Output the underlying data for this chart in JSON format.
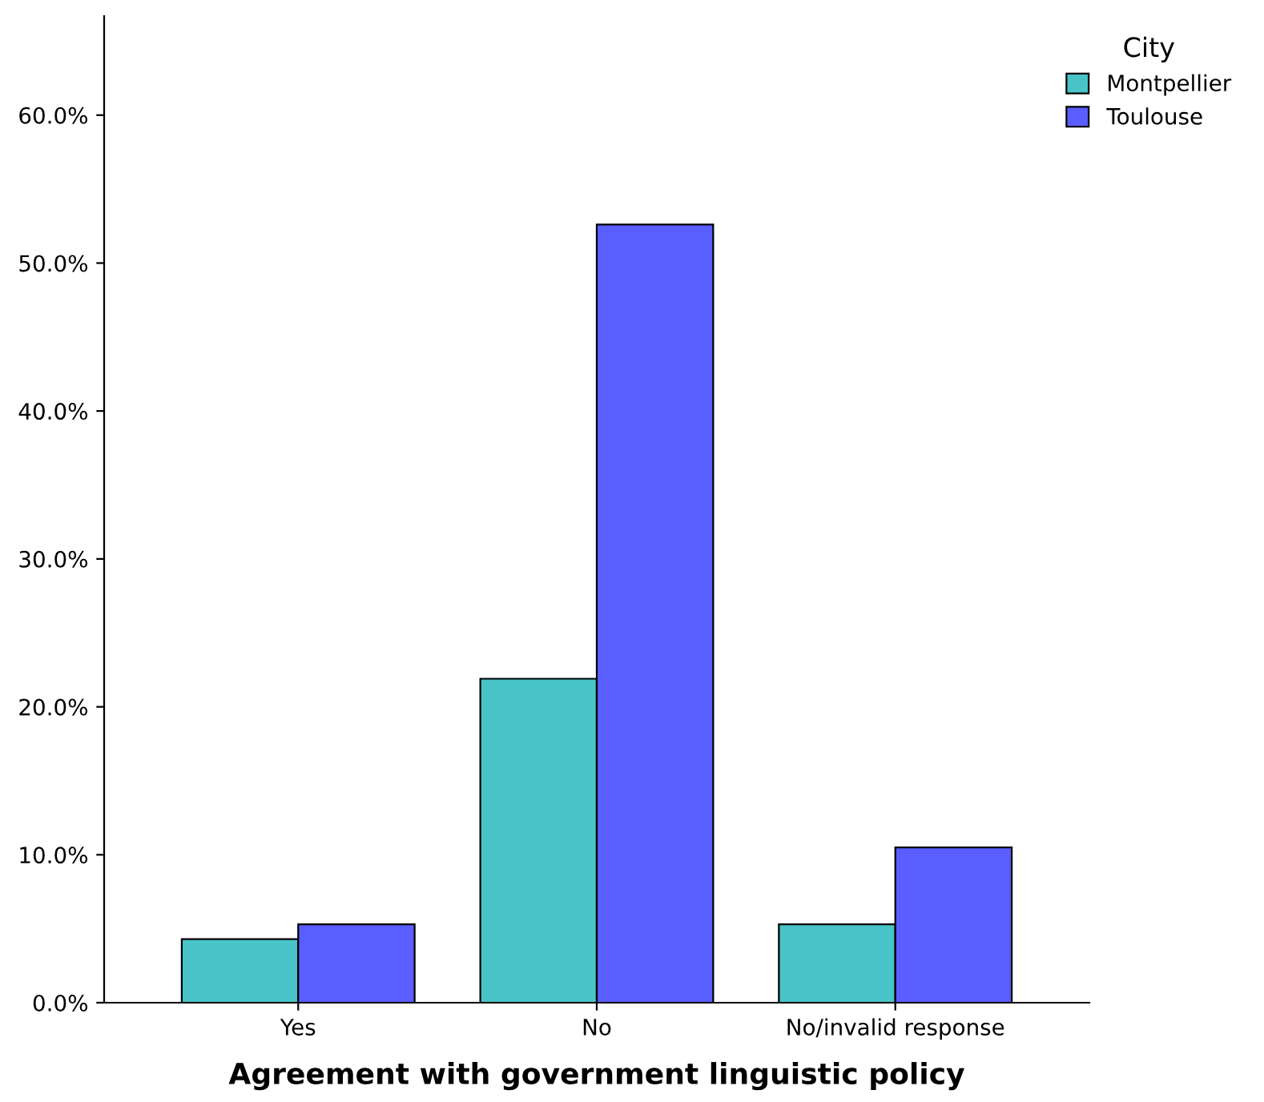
{
  "chart_data": {
    "type": "bar",
    "xlabel": "Agreement with government linguistic policy",
    "legend_title": "City",
    "categories": [
      "Yes",
      "No",
      "No/invalid response"
    ],
    "series": [
      {
        "name": "Montpellier",
        "color": "#48c4c8",
        "values": [
          4.3,
          21.9,
          5.3
        ]
      },
      {
        "name": "Toulouse",
        "color": "#5a5eff",
        "values": [
          5.3,
          52.6,
          10.5
        ]
      }
    ],
    "ylim": [
      0,
      66.7
    ],
    "yticks": [
      {
        "value": 0,
        "label": "0.0%"
      },
      {
        "value": 10,
        "label": "10.0%"
      },
      {
        "value": 20,
        "label": "20.0%"
      },
      {
        "value": 30,
        "label": "30.0%"
      },
      {
        "value": 40,
        "label": "40.0%"
      },
      {
        "value": 50,
        "label": "50.0%"
      },
      {
        "value": 60,
        "label": "60.0%"
      }
    ],
    "grid": false,
    "legend": "top right"
  }
}
